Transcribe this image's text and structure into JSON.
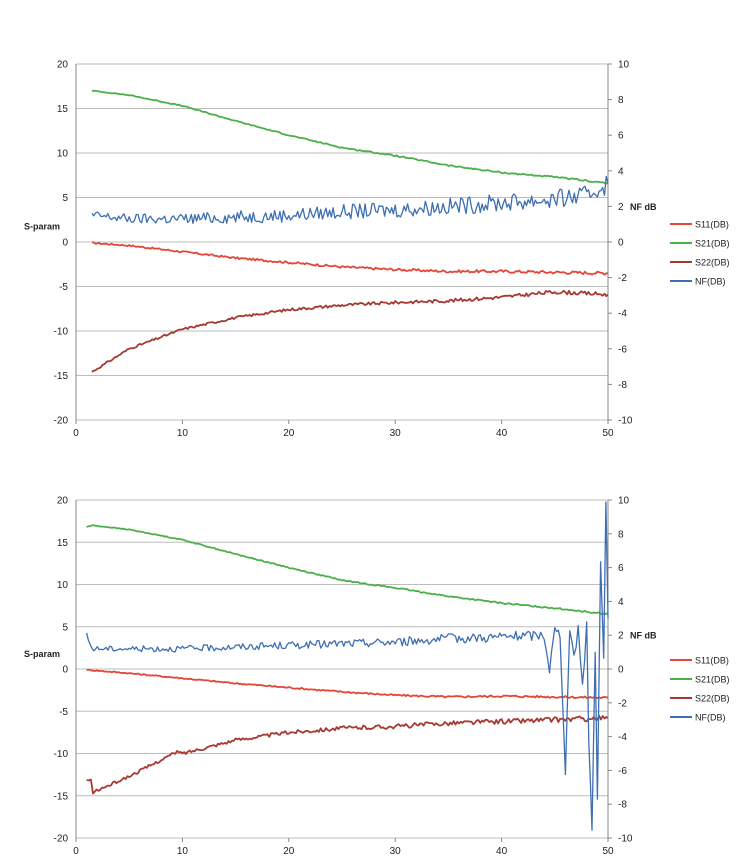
{
  "colors": {
    "S11(DB)": "#e2473a",
    "S21(DB)": "#4cb04a",
    "S22(DB)": "#a63a33",
    "NF(DB)": "#3f6fb0",
    "grid": "#bdbdbd"
  },
  "chart_data": [
    {
      "type": "line",
      "title": "",
      "xlabel": "",
      "ylabel": "S-param",
      "y2label": "NF dB",
      "xlim": [
        0,
        50
      ],
      "ylim": [
        -20,
        20
      ],
      "y2lim": [
        -10,
        10
      ],
      "xticks": [
        "0",
        "10",
        "20",
        "30",
        "40",
        "50"
      ],
      "yticks": [
        "20",
        "15",
        "10",
        "5",
        "0",
        "-5",
        "-10",
        "-15",
        "-20"
      ],
      "y2ticks": [
        "10",
        "8",
        "6",
        "4",
        "2",
        "0",
        "-2",
        "-4",
        "-6",
        "-8",
        "-10"
      ],
      "grid": true,
      "legend": "right",
      "series": [
        {
          "name": "S11(DB)",
          "axis": "left",
          "noise": 0.08,
          "x": [
            1.5,
            5,
            10,
            15,
            20,
            25,
            30,
            35,
            40,
            45,
            50
          ],
          "y": [
            -0.1,
            -0.4,
            -1.1,
            -1.8,
            -2.3,
            -2.8,
            -3.1,
            -3.3,
            -3.3,
            -3.4,
            -3.5
          ]
        },
        {
          "name": "S21(DB)",
          "axis": "left",
          "noise": 0.04,
          "x": [
            1.5,
            5,
            10,
            15,
            20,
            25,
            30,
            35,
            40,
            45,
            50
          ],
          "y": [
            17.0,
            16.5,
            15.3,
            13.6,
            12.0,
            10.6,
            9.7,
            8.6,
            7.8,
            7.3,
            6.6
          ]
        },
        {
          "name": "S22(DB)",
          "axis": "left",
          "noise": 0.1,
          "x": [
            1.5,
            5,
            10,
            15,
            20,
            25,
            30,
            35,
            40,
            45,
            50
          ],
          "y": [
            -14.6,
            -12.0,
            -9.8,
            -8.5,
            -7.6,
            -7.1,
            -6.8,
            -6.6,
            -6.2,
            -5.6,
            -5.9
          ]
        },
        {
          "name": "NF(DB)",
          "axis": "right",
          "noise": 0.25,
          "x": [
            1.5,
            5,
            10,
            15,
            20,
            25,
            30,
            35,
            40,
            45,
            48,
            50
          ],
          "y": [
            1.5,
            1.3,
            1.3,
            1.4,
            1.5,
            1.7,
            1.8,
            2.0,
            2.2,
            2.4,
            2.6,
            3.3
          ]
        }
      ]
    },
    {
      "type": "line",
      "title": "",
      "xlabel": "",
      "ylabel": "S-param",
      "y2label": "NF dB",
      "xlim": [
        0,
        50
      ],
      "ylim": [
        -20,
        20
      ],
      "y2lim": [
        -10,
        10
      ],
      "xticks": [
        "0",
        "10",
        "20",
        "30",
        "40",
        "50"
      ],
      "yticks": [
        "20",
        "15",
        "10",
        "5",
        "0",
        "-5",
        "-10",
        "-15",
        "-20"
      ],
      "y2ticks": [
        "10",
        "8",
        "6",
        "4",
        "2",
        "0",
        "-2",
        "-4",
        "-6",
        "-8",
        "-10"
      ],
      "grid": true,
      "legend": "right",
      "series": [
        {
          "name": "S11(DB)",
          "axis": "left",
          "noise": 0.06,
          "x": [
            1,
            5,
            10,
            15,
            20,
            25,
            30,
            35,
            40,
            45,
            50
          ],
          "y": [
            -0.1,
            -0.5,
            -1.1,
            -1.7,
            -2.2,
            -2.7,
            -3.1,
            -3.3,
            -3.2,
            -3.3,
            -3.4
          ]
        },
        {
          "name": "S21(DB)",
          "axis": "left",
          "noise": 0.04,
          "x": [
            1,
            1.5,
            5,
            10,
            15,
            20,
            25,
            30,
            35,
            40,
            45,
            50
          ],
          "y": [
            16.8,
            17.0,
            16.5,
            15.3,
            13.6,
            12.0,
            10.5,
            9.6,
            8.6,
            7.8,
            7.2,
            6.5
          ]
        },
        {
          "name": "S22(DB)",
          "axis": "left",
          "noise": 0.15,
          "x": [
            1,
            1.4,
            1.6,
            5,
            9.5,
            10,
            15,
            20,
            25,
            30,
            35,
            40,
            45,
            50
          ],
          "y": [
            -13.2,
            -13.2,
            -14.6,
            -12.7,
            -9.8,
            -10.0,
            -8.4,
            -7.5,
            -7.0,
            -6.8,
            -6.4,
            -6.2,
            -6.0,
            -5.8
          ]
        },
        {
          "name": "NF(DB)",
          "axis": "right",
          "noise": 0.15,
          "x": [
            1,
            1.5,
            5,
            10,
            15,
            20,
            25,
            30,
            35,
            40,
            44,
            44.5,
            45,
            45.5,
            46,
            46.4,
            46.8,
            47.2,
            47.6,
            48,
            48.2,
            48.5,
            48.8,
            49,
            49.3,
            49.6,
            49.8,
            50
          ],
          "y": [
            2.0,
            1.2,
            1.2,
            1.2,
            1.3,
            1.4,
            1.5,
            1.6,
            1.8,
            1.9,
            2.0,
            0.0,
            2.3,
            2.0,
            -6.0,
            2.5,
            0.5,
            2.5,
            -1.0,
            2.5,
            -4.0,
            -9.5,
            1.0,
            -7.5,
            6.5,
            0.5,
            10.0,
            3.0
          ]
        }
      ]
    }
  ]
}
